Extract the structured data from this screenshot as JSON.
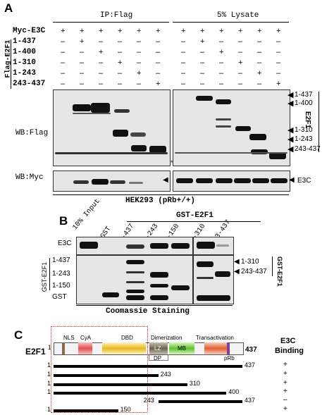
{
  "panelA": {
    "letter": "A",
    "ip_header": "IP:Flag",
    "lysate_header": "5% Lysate",
    "row_labels": [
      "Myc-E3C",
      "1-437",
      "1-400",
      "1-310",
      "1-243",
      "243-437"
    ],
    "flag_group_label": "Flag-E2F1",
    "row_signs": [
      [
        "+",
        "+",
        "+",
        "+",
        "+",
        "+",
        "+",
        "+",
        "+",
        "+",
        "+",
        "+"
      ],
      [
        "–",
        "+",
        "–",
        "–",
        "–",
        "–",
        "–",
        "+",
        "–",
        "–",
        "–",
        "–"
      ],
      [
        "–",
        "–",
        "+",
        "–",
        "–",
        "–",
        "–",
        "–",
        "+",
        "–",
        "–",
        "–"
      ],
      [
        "–",
        "–",
        "–",
        "+",
        "–",
        "–",
        "–",
        "–",
        "–",
        "+",
        "–",
        "–"
      ],
      [
        "–",
        "–",
        "–",
        "–",
        "+",
        "–",
        "–",
        "–",
        "–",
        "–",
        "+",
        "–"
      ],
      [
        "–",
        "–",
        "–",
        "–",
        "–",
        "+",
        "–",
        "–",
        "–",
        "–",
        "–",
        "+"
      ]
    ],
    "wb_flag": "WB:Flag",
    "wb_myc": "WB:Myc",
    "right_markers": [
      "1-437",
      "1-400",
      "1-310",
      "1-243",
      "243-437"
    ],
    "e2f1_label": "E2F1",
    "e3c_label": "E3C",
    "star": "*",
    "cell_line": "HEK293 (pRb+/+)"
  },
  "panelB": {
    "letter": "B",
    "gst_e2f1_header": "GST-E2F1",
    "lanes": [
      "10% Input",
      "GST",
      "1-437",
      "1-243",
      "1-150",
      "1-310",
      "243-437"
    ],
    "e3c_label": "E3C",
    "left_markers": [
      "1-437",
      "1-243",
      "1-150",
      "GST"
    ],
    "gst_group_label": "GST-E2F1",
    "right_markers": [
      "1-310",
      "243-437"
    ],
    "right_group_label": "GST-E2F1",
    "stain_label": "Coomassie Staining"
  },
  "panelC": {
    "letter": "C",
    "protein_label": "E2F1",
    "start_num": "1",
    "end_num": "437",
    "domains": {
      "nls": "NLS",
      "cya": "CyA",
      "dbd": "DBD",
      "dimerization": "Dimerization",
      "transactivation": "Transactivation",
      "lz": "LZ",
      "mb": "MB",
      "dp": "DP",
      "prb": "pRb"
    },
    "binding_header_1": "E3C",
    "binding_header_2": "Binding",
    "constructs": [
      {
        "start": 1,
        "end": 437,
        "binding": "+"
      },
      {
        "start": 1,
        "end": 243,
        "binding": "+"
      },
      {
        "start": 1,
        "end": 310,
        "binding": "+"
      },
      {
        "start": 1,
        "end": 400,
        "binding": "+"
      },
      {
        "start": 243,
        "end": 437,
        "binding": "–"
      },
      {
        "start": 1,
        "end": 150,
        "binding": "+"
      }
    ],
    "construct_labels": [
      {
        "left": "1",
        "right": "437"
      },
      {
        "left": "1",
        "right": "243"
      },
      {
        "left": "1",
        "right": "310"
      },
      {
        "left": "1",
        "right": "400"
      },
      {
        "left": "243",
        "right": "437"
      },
      {
        "left": "1",
        "right": "150"
      }
    ]
  }
}
